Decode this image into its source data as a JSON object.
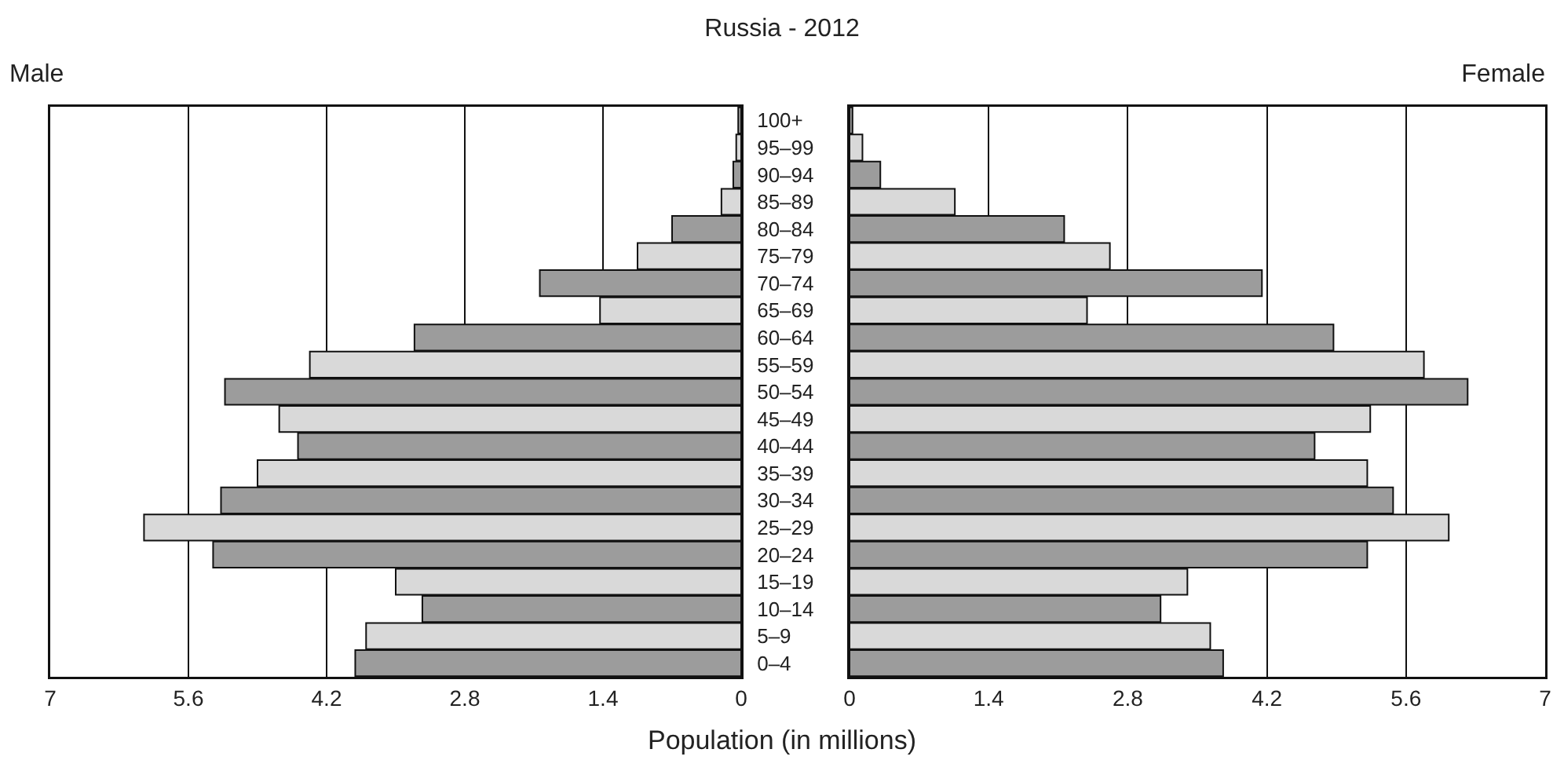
{
  "chart_data": [
    {
      "type": "bar",
      "orientation": "horizontal",
      "title": "Russia - 2012",
      "xlabel": "Population (in millions)",
      "categories": [
        "100+",
        "95–99",
        "90–94",
        "85–89",
        "80–84",
        "75–79",
        "70–74",
        "65–69",
        "60–64",
        "55–59",
        "50–54",
        "45–49",
        "40–44",
        "35–39",
        "30–34",
        "25–29",
        "20–24",
        "15–19",
        "10–14",
        "5–9",
        "0–4"
      ],
      "series": [
        {
          "name": "Male",
          "colors": [
            "#9c9c9c",
            "#d9d9d9",
            "#9c9c9c",
            "#d9d9d9",
            "#9c9c9c",
            "#d9d9d9",
            "#9c9c9c",
            "#d9d9d9",
            "#9c9c9c",
            "#d9d9d9",
            "#9c9c9c",
            "#d9d9d9",
            "#9c9c9c",
            "#d9d9d9",
            "#9c9c9c",
            "#d9d9d9",
            "#9c9c9c",
            "#d9d9d9",
            "#9c9c9c",
            "#d9d9d9",
            "#9c9c9c"
          ],
          "values": [
            0.03,
            0.05,
            0.08,
            0.2,
            0.7,
            1.05,
            2.04,
            1.43,
            3.31,
            4.37,
            5.23,
            4.68,
            4.49,
            4.9,
            5.27,
            6.05,
            5.35,
            3.5,
            3.23,
            3.8,
            3.91
          ]
        }
      ],
      "xlim": [
        7,
        0
      ],
      "xticks": [
        7,
        5.6,
        4.2,
        2.8,
        1.4,
        0
      ],
      "grid": "x"
    },
    {
      "type": "bar",
      "orientation": "horizontal",
      "series": [
        {
          "name": "Female",
          "colors": [
            "#9c9c9c",
            "#d9d9d9",
            "#9c9c9c",
            "#d9d9d9",
            "#9c9c9c",
            "#d9d9d9",
            "#9c9c9c",
            "#d9d9d9",
            "#9c9c9c",
            "#d9d9d9",
            "#9c9c9c",
            "#d9d9d9",
            "#9c9c9c",
            "#d9d9d9",
            "#9c9c9c",
            "#d9d9d9",
            "#9c9c9c",
            "#d9d9d9",
            "#9c9c9c",
            "#d9d9d9",
            "#9c9c9c"
          ],
          "values": [
            0.03,
            0.13,
            0.31,
            1.06,
            2.16,
            2.62,
            4.15,
            2.39,
            4.87,
            5.78,
            6.22,
            5.24,
            4.68,
            5.21,
            5.47,
            6.03,
            5.21,
            3.4,
            3.13,
            3.63,
            3.76
          ]
        }
      ],
      "xlim": [
        0,
        7
      ],
      "xticks": [
        0,
        1.4,
        2.8,
        4.2,
        5.6,
        7
      ],
      "grid": "x",
      "tick_labels": "x"
    }
  ]
}
